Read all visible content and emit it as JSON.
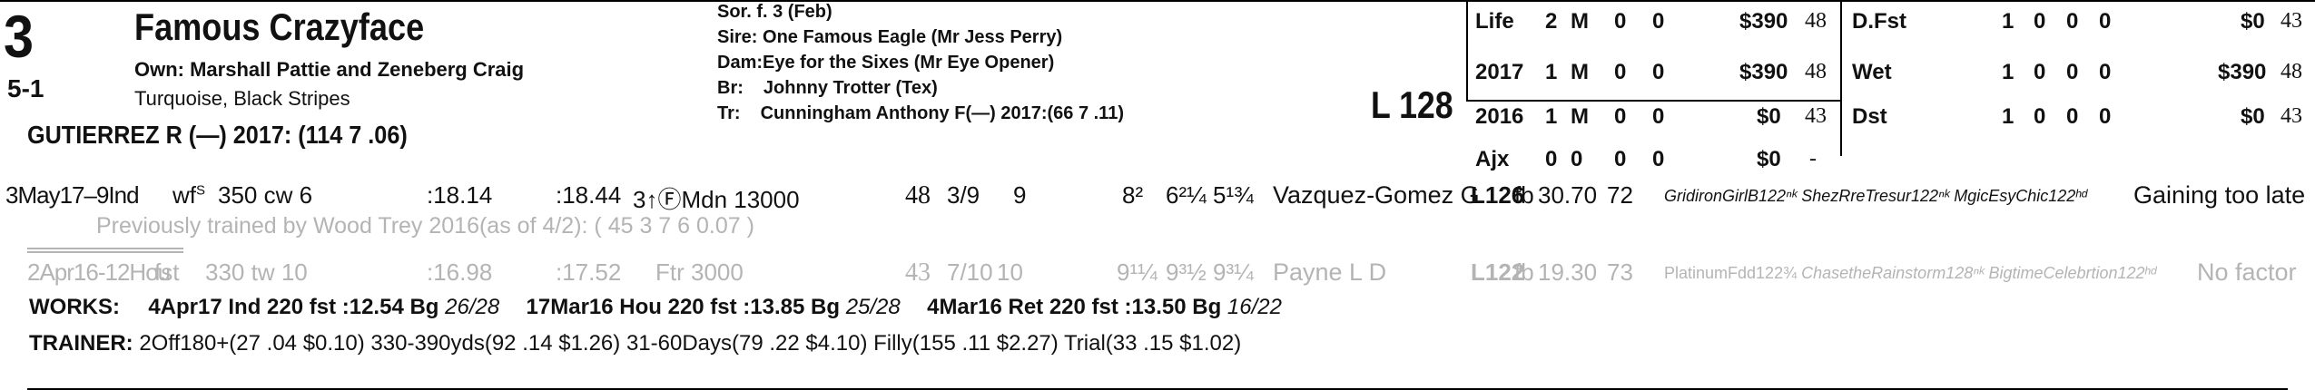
{
  "entry": {
    "program_number": "3",
    "horse_name": "Famous Crazyface",
    "owner": "Own: Marshall Pattie and Zeneberg Craig",
    "morning_line": "5-1",
    "silks": "Turquoise, Black Stripes",
    "jockey": "GUTIERREZ R (—) 2017: (114 7 .06)",
    "sex_age": "Sor. f. 3 (Feb)",
    "sire": "Sire: One Famous Eagle (Mr Jess Perry)",
    "dam_label": "Dam:",
    "dam": "Eye for the Sixes (Mr Eye Opener)",
    "breeder_label": "Br:",
    "breeder": "Johnny Trotter (Tex)",
    "trainer_label": "Tr:",
    "trainer": "Cunningham Anthony F(—) 2017:(66 7 .11)",
    "weight": "L 128"
  },
  "record_left": [
    {
      "label": "Life",
      "starts": "2",
      "wins": "M",
      "places": "0",
      "shows": "0",
      "earnings": "$390",
      "speed": "48"
    },
    {
      "label": "2017",
      "starts": "1",
      "wins": "M",
      "places": "0",
      "shows": "0",
      "earnings": "$390",
      "speed": "48"
    },
    {
      "label": "2016",
      "starts": "1",
      "wins": "M",
      "places": "0",
      "shows": "0",
      "earnings": "$0",
      "speed": "43"
    },
    {
      "label": "Ajx",
      "starts": "0",
      "wins": "0",
      "places": "0",
      "shows": "0",
      "earnings": "$0",
      "speed": "-"
    }
  ],
  "record_right": [
    {
      "label": "D.Fst",
      "starts": "1",
      "wins": "0",
      "places": "0",
      "shows": "0",
      "earnings": "$0",
      "speed": "43"
    },
    {
      "label": "Wet",
      "starts": "1",
      "wins": "0",
      "places": "0",
      "shows": "0",
      "earnings": "$390",
      "speed": "48"
    },
    {
      "label": "Dst",
      "starts": "1",
      "wins": "0",
      "places": "0",
      "shows": "0",
      "earnings": "$0",
      "speed": "43"
    }
  ],
  "race1": {
    "date_track": "3May17–9Ind",
    "surface": "wf",
    "surface_sup": "S",
    "dist": "350 cw 6",
    "frac1": ":18.14",
    "frac2": ":18.44",
    "race": "3↑ⒻMdn 13000",
    "speed": "48",
    "post": "3/9",
    "start": "9",
    "call1": "8²",
    "call2": "6²¼",
    "finish": "5¹¾",
    "jockey": "Vazquez-Gomez G",
    "weight": "L126",
    "meds": "fb",
    "odds": "30.70",
    "fig": "72",
    "top3": "GridironGirlB122ⁿᵏ ShezRreTresur122ⁿᵏ MgicEsyChic122ʰᵈ",
    "comment": "Gaining too late",
    "prev_trainer": "Previously trained by Wood Trey 2016(as of 4/2): ( 45 3 7 6 0.07 )"
  },
  "race2": {
    "date_track": "2Apr16-12Hou",
    "surface": "fst",
    "dist": "330 tw 10",
    "frac1": ":16.98",
    "frac2": ":17.52",
    "race": "Ftr 3000",
    "speed": "43",
    "post": "7/10",
    "start": "10",
    "call1": "9¹¼",
    "call2": "9³½",
    "finish": "9³¼",
    "jockey": "Payne L D",
    "weight": "L122",
    "meds": "fb",
    "odds": "19.30",
    "fig": "73",
    "top3_a": "PlatinumFdd122¾",
    "top3_b": "ChasetheRainstorm128ⁿᵏ BigtimeCelebrtion122ʰᵈ",
    "comment": "No factor"
  },
  "works": {
    "label": "WORKS:",
    "items": [
      {
        "text": "4Apr17 Ind 220 fst :12.54 Bg",
        "rank": "26/28"
      },
      {
        "text": "17Mar16 Hou 220 fst :13.85 Bg",
        "rank": "25/28"
      },
      {
        "text": "4Mar16 Ret 220 fst :13.50 Bg",
        "rank": "16/22"
      }
    ]
  },
  "trainer_stats": {
    "label": "TRAINER:",
    "text": "2Off180+(27 .04 $0.10) 330-390yds(92 .14 $1.26) 31-60Days(79 .22 $4.10) Filly(155 .11 $2.27) Trial(33 .15 $1.02)"
  }
}
